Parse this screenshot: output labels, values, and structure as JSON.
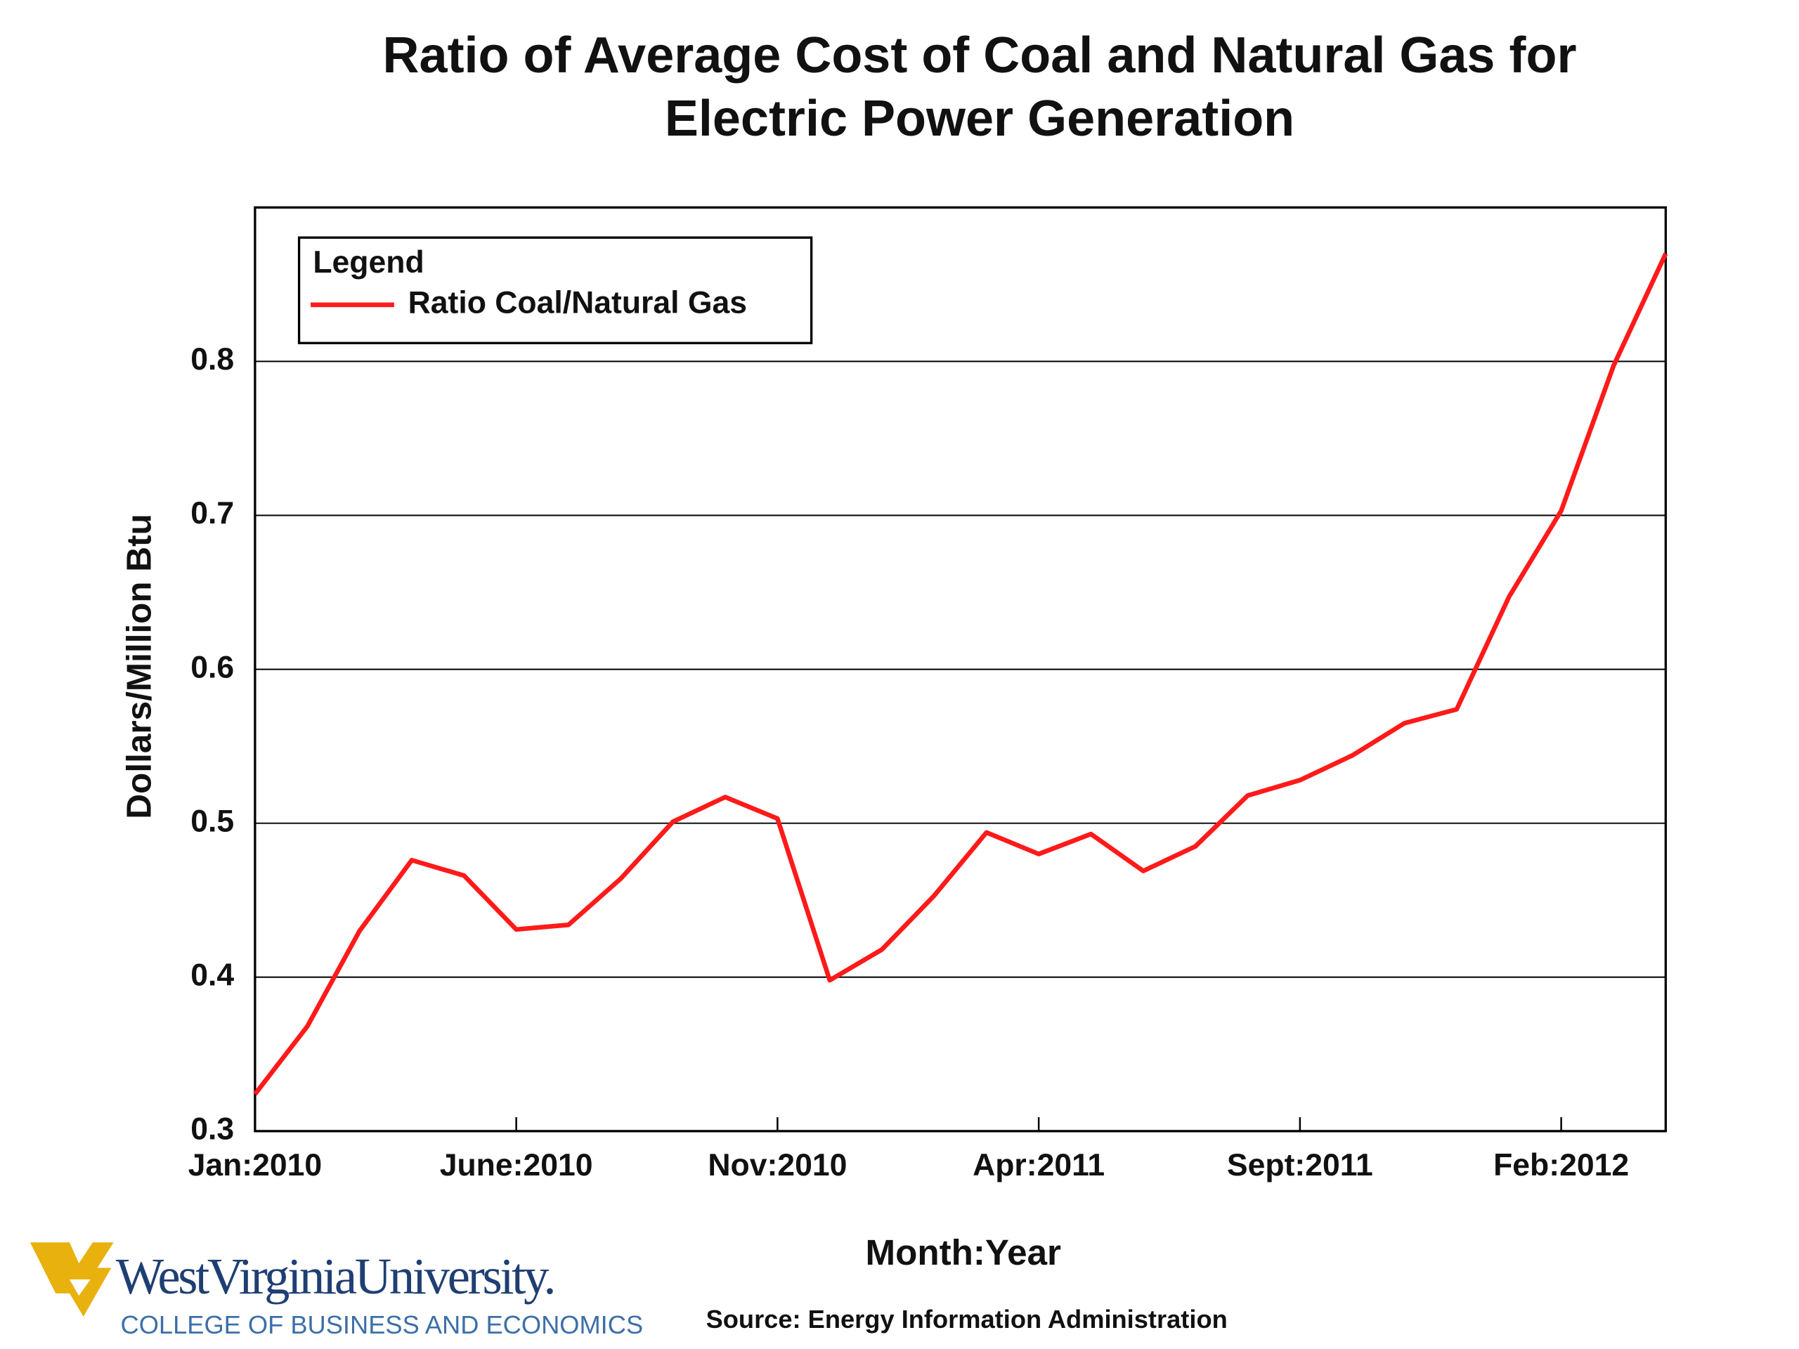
{
  "chart_data": {
    "type": "line",
    "title": "Ratio of Average Cost of Coal and Natural Gas for Electric Power Generation",
    "x_label": "Month:Year",
    "y_label": "Dollars/Million Btu",
    "source": "Source: Energy Information Administration",
    "legend_title": "Legend",
    "legend": "upper left",
    "grid": true,
    "categories": [
      "Jan:2010",
      null,
      null,
      null,
      null,
      "June:2010",
      null,
      null,
      null,
      null,
      "Nov:2010",
      null,
      null,
      null,
      null,
      "Apr:2011",
      null,
      null,
      null,
      null,
      "Sept:2011",
      null,
      null,
      null,
      null,
      "Feb:2012",
      null,
      null
    ],
    "series": [
      {
        "name": "Ratio Coal/Natural Gas",
        "color": "#ff1a1a",
        "values": [
          0.324,
          0.368,
          0.43,
          0.476,
          0.466,
          0.431,
          0.434,
          0.464,
          0.501,
          0.517,
          0.503,
          0.398,
          0.418,
          0.453,
          0.494,
          0.48,
          0.493,
          0.469,
          0.485,
          0.518,
          0.528,
          0.544,
          0.565,
          0.574,
          0.647,
          0.703,
          0.797,
          0.87
        ]
      }
    ],
    "ylim": [
      0.3,
      0.9
    ],
    "yticks": [
      0.3,
      0.4,
      0.5,
      0.6,
      0.7,
      0.8
    ]
  },
  "footer": {
    "logo_name": "WestVirginiaUniversity.",
    "logo_subtitle": "COLLEGE OF BUSINESS AND ECONOMICS"
  }
}
